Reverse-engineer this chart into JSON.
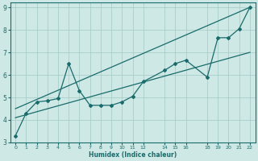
{
  "xlabel": "Humidex (Indice chaleur)",
  "background_color": "#cde8e5",
  "grid_color": "#a8ceca",
  "line_color": "#1a6b6b",
  "xlim": [
    -0.5,
    22.5
  ],
  "ylim": [
    3,
    9.2
  ],
  "xtick_vals": [
    0,
    1,
    2,
    3,
    4,
    5,
    6,
    7,
    8,
    9,
    10,
    11,
    12,
    14,
    15,
    16,
    18,
    19,
    20,
    21,
    22
  ],
  "xtick_labels": [
    "0",
    "1",
    "2",
    "3",
    "4",
    "5",
    "6",
    "7",
    "8",
    "9",
    "10",
    "11",
    "12",
    "14",
    "15",
    "16",
    "18",
    "19",
    "20",
    "21",
    "22"
  ],
  "yticks": [
    3,
    4,
    5,
    6,
    7,
    8,
    9
  ],
  "line1_x": [
    0,
    1,
    2,
    3,
    4,
    5,
    6,
    7,
    8,
    9,
    10,
    11,
    12,
    14,
    15,
    16,
    18,
    19,
    20,
    21,
    22
  ],
  "line1_y": [
    3.3,
    4.3,
    4.8,
    4.85,
    4.95,
    6.5,
    5.3,
    4.65,
    4.65,
    4.65,
    4.8,
    5.05,
    5.7,
    6.2,
    6.5,
    6.65,
    5.9,
    7.65,
    7.65,
    8.05,
    9.0
  ],
  "line2_x": [
    0,
    22
  ],
  "line2_y": [
    4.5,
    9.0
  ],
  "line3_x": [
    0,
    22
  ],
  "line3_y": [
    4.1,
    7.0
  ]
}
